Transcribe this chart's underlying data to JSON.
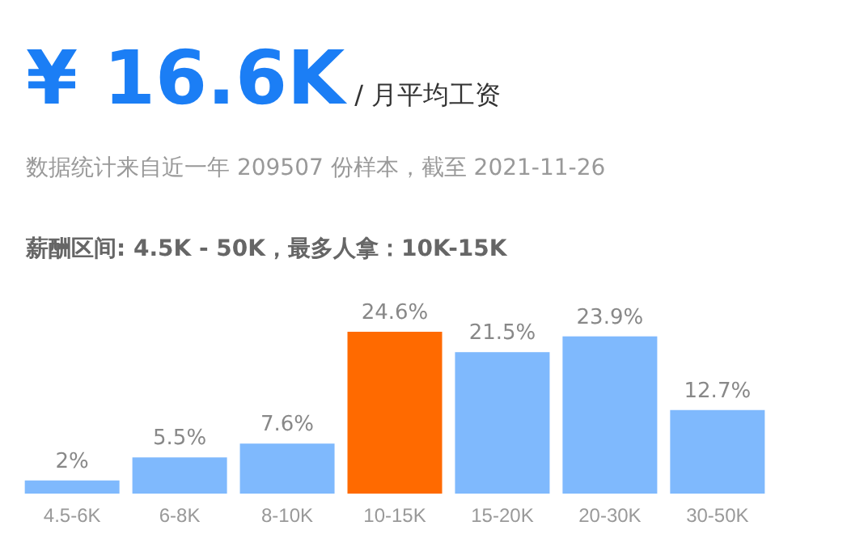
{
  "chart_data": {
    "type": "bar",
    "title": "¥ 16.6K",
    "subtitle": "/ 月平均工资",
    "annotations": [
      "数据统计来自近一年 209507 份样本，截至 2021-11-26",
      "薪酬区间: 4.5K - 50K，最多人拿：10K-15K"
    ],
    "categories": [
      "4.5-6K",
      "6-8K",
      "8-10K",
      "10-15K",
      "15-20K",
      "20-30K",
      "30-50K"
    ],
    "values": [
      2,
      5.5,
      7.6,
      24.6,
      21.5,
      23.9,
      12.7
    ],
    "value_labels": [
      "2%",
      "5.5%",
      "7.6%",
      "24.6%",
      "21.5%",
      "23.9%",
      "12.7%"
    ],
    "colors": [
      "#7fb9fd",
      "#7fb9fd",
      "#7fb9fd",
      "#ff6a00",
      "#7fb9fd",
      "#7fb9fd",
      "#7fb9fd"
    ]
  }
}
